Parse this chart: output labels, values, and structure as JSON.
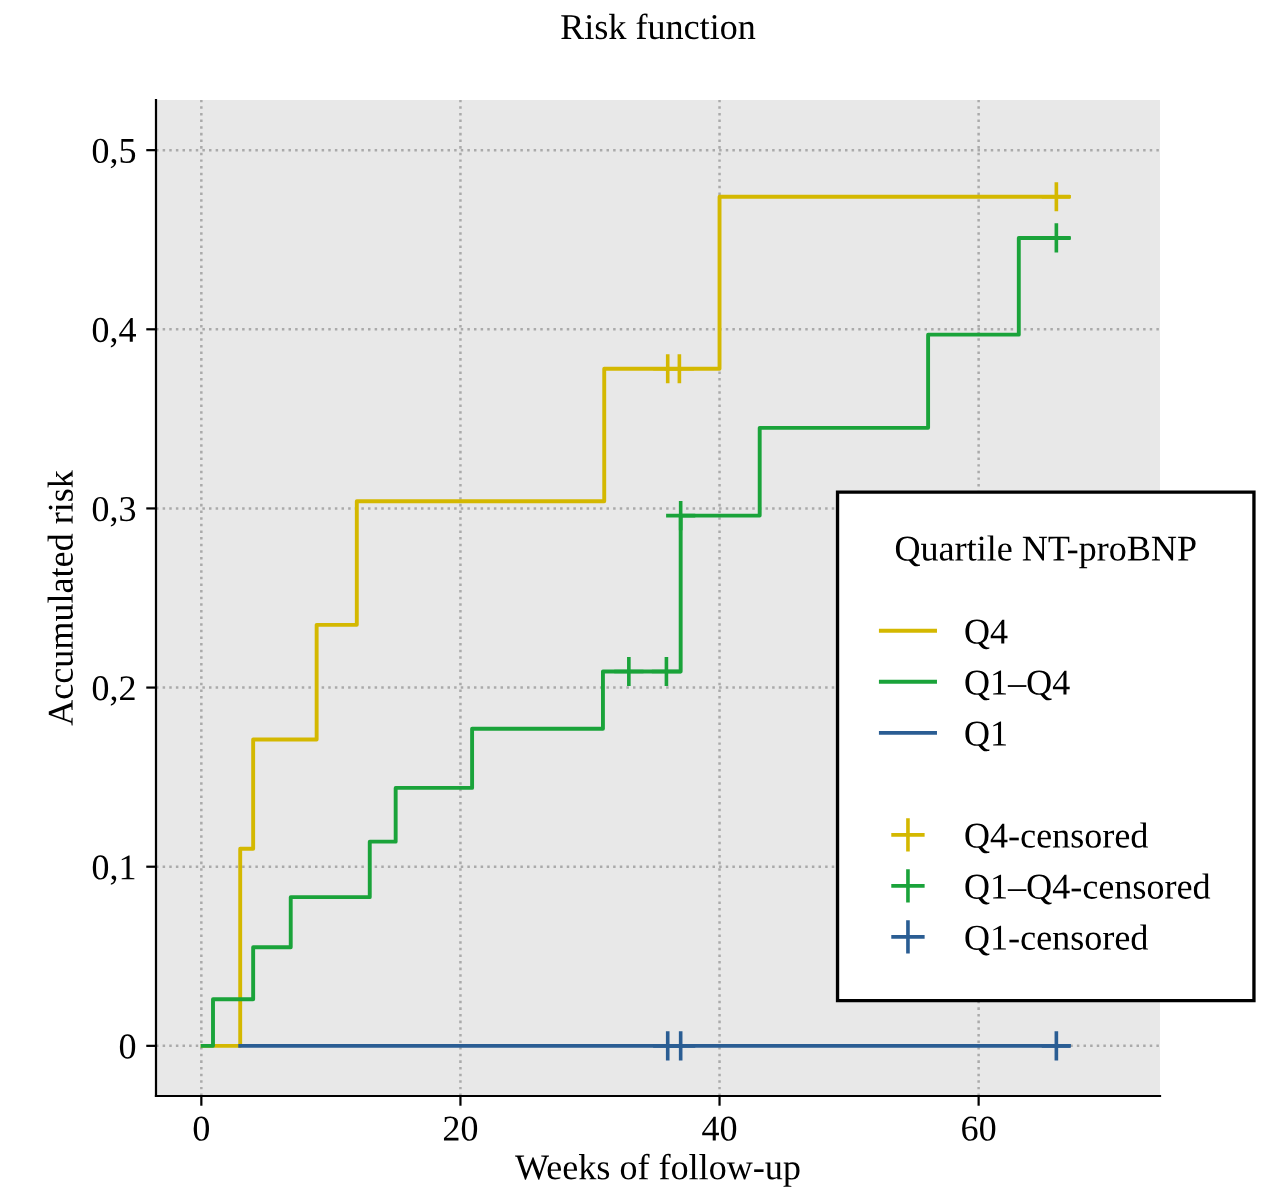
{
  "chart_data": {
    "type": "step",
    "title": "Risk function",
    "xlabel": "Weeks of follow-up",
    "ylabel": "Accumulated risk",
    "legend_title": "Quartile NT-proBNP",
    "xlim": [
      -3.5,
      74
    ],
    "ylim": [
      -0.028,
      0.528
    ],
    "xticks": [
      0,
      20,
      40,
      60
    ],
    "yticks": [
      {
        "value": 0,
        "label": "0"
      },
      {
        "value": 0.1,
        "label": "0,1"
      },
      {
        "value": 0.2,
        "label": "0,2"
      },
      {
        "value": 0.3,
        "label": "0,3"
      },
      {
        "value": 0.4,
        "label": "0,4"
      },
      {
        "value": 0.5,
        "label": "0,5"
      }
    ],
    "grid": true,
    "legend": "right",
    "series": [
      {
        "name": "Q4",
        "color": "#d4b800",
        "x": [
          0.1,
          3.0,
          4.0,
          8.9,
          12.0,
          31.1,
          40.0,
          66.9
        ],
        "values": [
          0,
          0.11,
          0.171,
          0.235,
          0.304,
          0.378,
          0.474,
          0.474
        ]
      },
      {
        "name": "Q1–Q4",
        "color": "#1aa33a",
        "x": [
          0.1,
          0.9,
          4.0,
          6.9,
          13.0,
          15.0,
          20.9,
          31.0,
          37.0,
          43.1,
          56.1,
          63.1,
          66.9
        ],
        "values": [
          0,
          0.026,
          0.055,
          0.083,
          0.114,
          0.144,
          0.177,
          0.209,
          0.296,
          0.345,
          0.397,
          0.451,
          0.451
        ]
      },
      {
        "name": "Q1",
        "color": "#2a5d93",
        "x": [
          3.0,
          66.9
        ],
        "values": [
          0,
          0
        ]
      },
      {
        "name": "Q4-censored",
        "color": "#d4b800",
        "type": "scatter",
        "marker": "cross",
        "x": [
          36.0,
          36.9,
          66.0
        ],
        "values": [
          0.378,
          0.378,
          0.474
        ]
      },
      {
        "name": "Q1–Q4-censored",
        "color": "#1aa33a",
        "type": "scatter",
        "marker": "cross",
        "x": [
          33.0,
          35.9,
          37.0,
          66.0
        ],
        "values": [
          0.209,
          0.209,
          0.296,
          0.451
        ]
      },
      {
        "name": "Q1-censored",
        "color": "#2a5d93",
        "type": "scatter",
        "marker": "cross",
        "x": [
          36.0,
          37.0,
          66.0
        ],
        "values": [
          0,
          0,
          0
        ]
      }
    ]
  }
}
